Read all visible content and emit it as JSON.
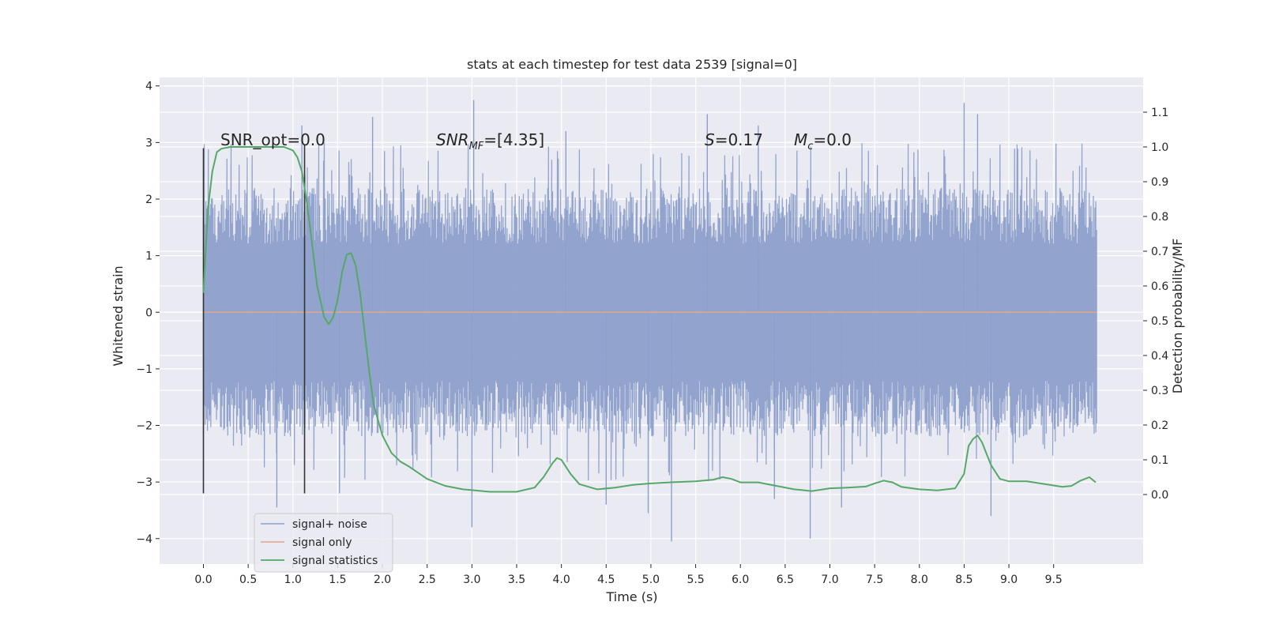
{
  "chart_data": {
    "type": "line",
    "title": "stats at each timestep for test data 2539 [signal=0]",
    "xlabel": "Time (s)",
    "ylabel": "Whitened strain",
    "y2label": "Detection probability/MF",
    "xlim": [
      -0.49,
      10.5
    ],
    "ylim": [
      -4.45,
      4.15
    ],
    "y2lim": [
      -0.2,
      1.2
    ],
    "xticks": [
      0.0,
      0.5,
      1.0,
      1.5,
      2.0,
      2.5,
      3.0,
      3.5,
      4.0,
      4.5,
      5.0,
      5.5,
      6.0,
      6.5,
      7.0,
      7.5,
      8.0,
      8.5,
      9.0,
      9.5
    ],
    "xtick_labels": [
      "0.0",
      "0.5",
      "1.0",
      "1.5",
      "2.0",
      "2.5",
      "3.0",
      "3.5",
      "4.0",
      "4.5",
      "5.0",
      "5.5",
      "6.0",
      "6.5",
      "7.0",
      "7.5",
      "8.0",
      "8.5",
      "9.0",
      "9.5"
    ],
    "yticks": [
      4,
      3,
      2,
      1,
      0,
      -1,
      -2,
      -3,
      -4
    ],
    "ytick_labels": [
      "4",
      "3",
      "2",
      "1",
      "0",
      "−1",
      "−2",
      "−3",
      "−4"
    ],
    "y2ticks": [
      1.1,
      1.0,
      0.9,
      0.8,
      0.7,
      0.6,
      0.5,
      0.4,
      0.3,
      0.2,
      0.1,
      0.0
    ],
    "y2tick_labels": [
      "1.1",
      "1.0",
      "0.9",
      "0.8",
      "0.7",
      "0.6",
      "0.5",
      "0.4",
      "0.3",
      "0.2",
      "0.1",
      "0.0"
    ],
    "grid": true,
    "legend_position": "lower-left",
    "annotations": {
      "snr_opt": "SNR_opt=0.0",
      "snr_mf_main": "SNR",
      "snr_mf_sub": "MF",
      "snr_mf_rest": "=[4.35]",
      "s_italic": "S",
      "s_rest": "=0.17",
      "mc_main": "M",
      "mc_sub": "c",
      "mc_rest": "=0.0"
    },
    "vertical_markers": [
      {
        "x": 0.0,
        "ymin": -3.2,
        "ymax": 2.9
      },
      {
        "x": 1.13,
        "ymin": -3.2,
        "ymax": 2.95
      }
    ],
    "series": [
      {
        "name": "signal+ noise",
        "color": "#8da0cb",
        "x_start": 0.0,
        "x_end": 9.98,
        "envelope_upper": 2.2,
        "envelope_lower": -2.2,
        "peak_spikes": [
          {
            "x": 1.1,
            "y": 3.3
          },
          {
            "x": 1.89,
            "y": 3.45
          },
          {
            "x": 3.02,
            "y": 3.75
          },
          {
            "x": 5.63,
            "y": 3.5
          },
          {
            "x": 8.5,
            "y": 3.7
          },
          {
            "x": 8.65,
            "y": 3.5
          },
          {
            "x": 1.35,
            "y": 3.0
          },
          {
            "x": 4.05,
            "y": 3.2
          },
          {
            "x": 6.2,
            "y": 3.3
          }
        ],
        "trough_spikes": [
          {
            "x": 0.82,
            "y": -3.45
          },
          {
            "x": 1.52,
            "y": -3.2
          },
          {
            "x": 3.0,
            "y": -3.8
          },
          {
            "x": 4.5,
            "y": -3.4
          },
          {
            "x": 4.97,
            "y": -3.55
          },
          {
            "x": 5.23,
            "y": -4.05
          },
          {
            "x": 6.38,
            "y": -3.3
          },
          {
            "x": 6.78,
            "y": -4.0
          },
          {
            "x": 7.13,
            "y": -3.45
          },
          {
            "x": 8.8,
            "y": -3.6
          }
        ]
      },
      {
        "name": "signal only",
        "color": "#e5a58a",
        "x": [
          0.0,
          9.98
        ],
        "y": [
          0.0,
          0.0
        ]
      },
      {
        "name": "signal statistics",
        "color": "#55a868",
        "axis": "right",
        "x": [
          0.0,
          0.05,
          0.1,
          0.15,
          0.2,
          0.3,
          0.5,
          0.7,
          0.9,
          1.0,
          1.05,
          1.1,
          1.15,
          1.2,
          1.27,
          1.35,
          1.4,
          1.45,
          1.5,
          1.55,
          1.6,
          1.65,
          1.7,
          1.75,
          1.8,
          1.85,
          1.9,
          2.0,
          2.1,
          2.2,
          2.3,
          2.5,
          2.7,
          2.9,
          3.2,
          3.5,
          3.7,
          3.8,
          3.9,
          3.95,
          4.0,
          4.1,
          4.2,
          4.4,
          4.6,
          4.8,
          5.0,
          5.2,
          5.5,
          5.7,
          5.8,
          5.9,
          6.0,
          6.2,
          6.4,
          6.6,
          6.8,
          7.0,
          7.2,
          7.4,
          7.5,
          7.6,
          7.7,
          7.8,
          8.0,
          8.2,
          8.4,
          8.5,
          8.55,
          8.6,
          8.65,
          8.7,
          8.8,
          8.9,
          9.0,
          9.2,
          9.4,
          9.6,
          9.7,
          9.8,
          9.9,
          9.97
        ],
        "y": [
          0.58,
          0.82,
          0.93,
          0.985,
          0.995,
          1.0,
          1.0,
          1.0,
          1.0,
          0.99,
          0.97,
          0.93,
          0.85,
          0.75,
          0.6,
          0.51,
          0.49,
          0.51,
          0.56,
          0.64,
          0.69,
          0.695,
          0.66,
          0.58,
          0.47,
          0.36,
          0.26,
          0.17,
          0.12,
          0.095,
          0.08,
          0.045,
          0.025,
          0.015,
          0.008,
          0.008,
          0.02,
          0.05,
          0.09,
          0.105,
          0.1,
          0.06,
          0.03,
          0.015,
          0.02,
          0.028,
          0.032,
          0.035,
          0.038,
          0.043,
          0.05,
          0.045,
          0.035,
          0.035,
          0.025,
          0.015,
          0.01,
          0.018,
          0.02,
          0.023,
          0.032,
          0.04,
          0.035,
          0.022,
          0.015,
          0.012,
          0.018,
          0.06,
          0.14,
          0.16,
          0.17,
          0.15,
          0.085,
          0.045,
          0.038,
          0.038,
          0.03,
          0.022,
          0.025,
          0.04,
          0.05,
          0.035
        ]
      }
    ]
  }
}
